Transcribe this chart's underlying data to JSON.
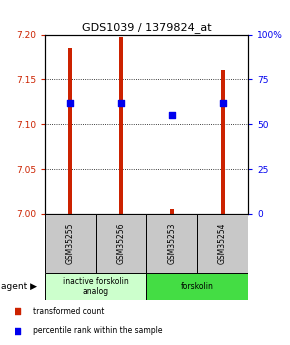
{
  "title": "GDS1039 / 1379824_at",
  "samples": [
    "GSM35255",
    "GSM35256",
    "GSM35253",
    "GSM35254"
  ],
  "bar_bottoms": [
    7.0,
    7.0,
    7.0,
    7.0
  ],
  "bar_tops": [
    7.185,
    7.197,
    7.005,
    7.16
  ],
  "percentile_ranks": [
    62,
    62,
    55,
    62
  ],
  "ylim_left": [
    7.0,
    7.2
  ],
  "ylim_right": [
    0,
    100
  ],
  "yticks_left": [
    7.0,
    7.05,
    7.1,
    7.15,
    7.2
  ],
  "yticks_right": [
    0,
    25,
    50,
    75,
    100
  ],
  "ytick_labels_right": [
    "0",
    "25",
    "50",
    "75",
    "100%"
  ],
  "bar_color": "#cc2200",
  "dot_color": "#0000ee",
  "agent_groups": [
    {
      "label": "inactive forskolin\nanalog",
      "span": [
        0,
        2
      ],
      "color": "#ccffcc"
    },
    {
      "label": "forskolin",
      "span": [
        2,
        4
      ],
      "color": "#44dd44"
    }
  ],
  "background_color": "#ffffff",
  "plot_bg": "#ffffff",
  "bar_width": 0.08,
  "legend_items": [
    {
      "color": "#cc2200",
      "label": "transformed count"
    },
    {
      "color": "#0000ee",
      "label": "percentile rank within the sample"
    }
  ]
}
